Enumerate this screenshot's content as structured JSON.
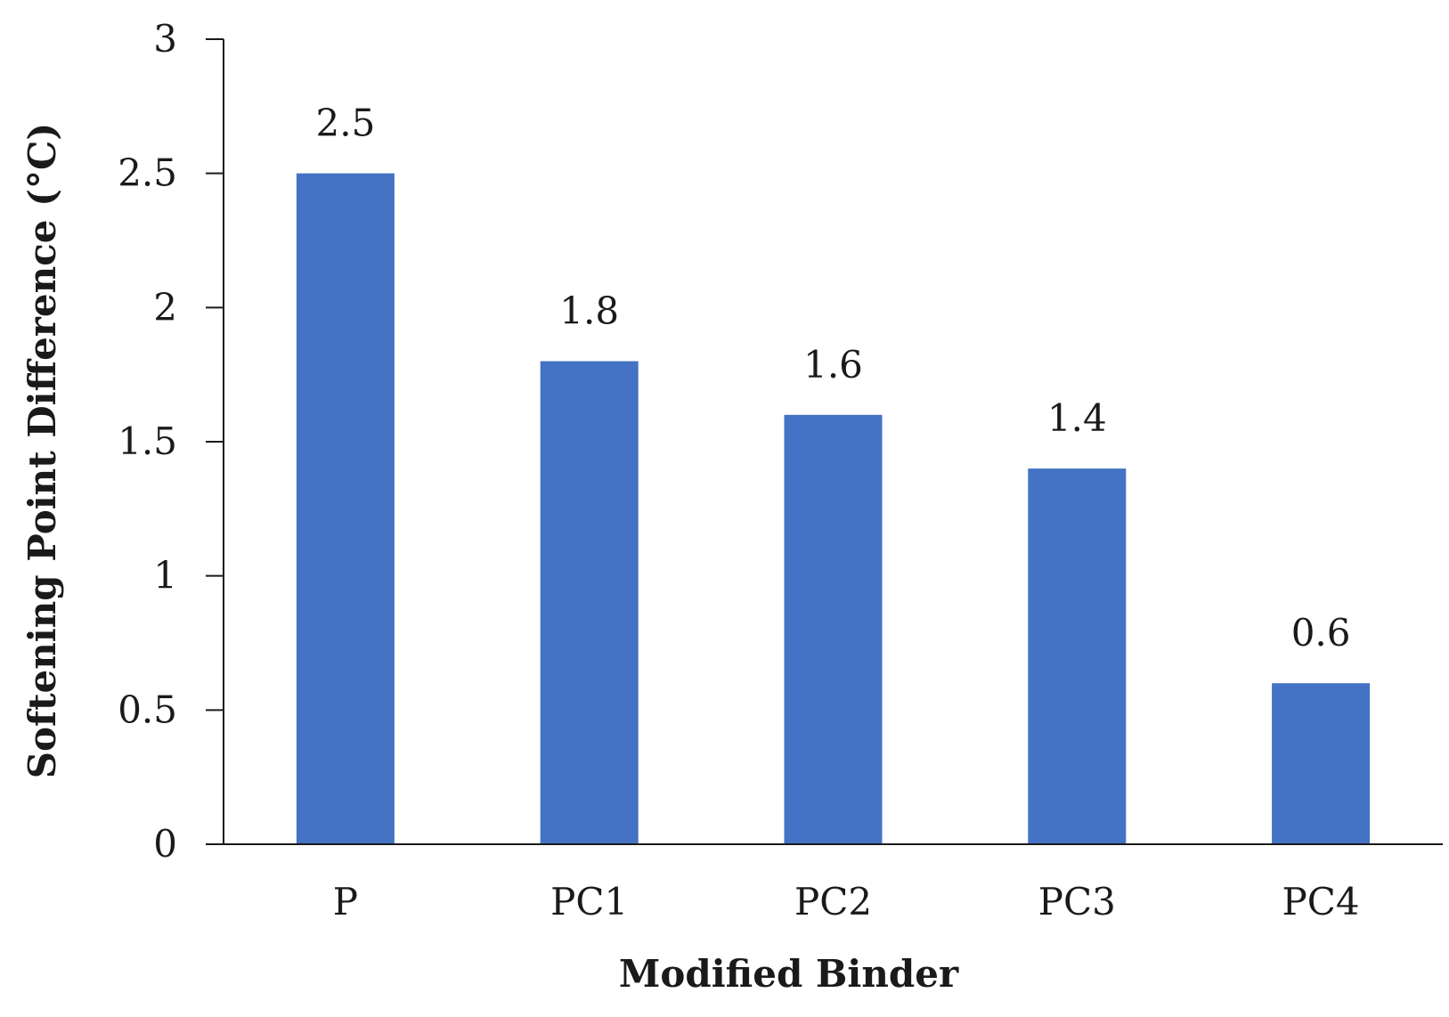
{
  "chart_data": {
    "type": "bar",
    "categories": [
      "P",
      "PC1",
      "PC2",
      "PC3",
      "PC4"
    ],
    "values": [
      2.5,
      1.8,
      1.6,
      1.4,
      0.6
    ],
    "data_labels": [
      "2.5",
      "1.8",
      "1.6",
      "1.4",
      "0.6"
    ],
    "xlabel": "Modified Binder",
    "ylabel": "Softening Point Difference (°C)",
    "ylim": [
      0,
      3
    ],
    "yticks": [
      0,
      0.5,
      1,
      1.5,
      2,
      2.5,
      3
    ],
    "ytick_labels": [
      "0",
      "0.5",
      "1",
      "1.5",
      "2",
      "2.5",
      "3"
    ],
    "grid": false,
    "legend": "none",
    "bar_color": "#4472C4",
    "axis_color": "#1a1a1a"
  }
}
